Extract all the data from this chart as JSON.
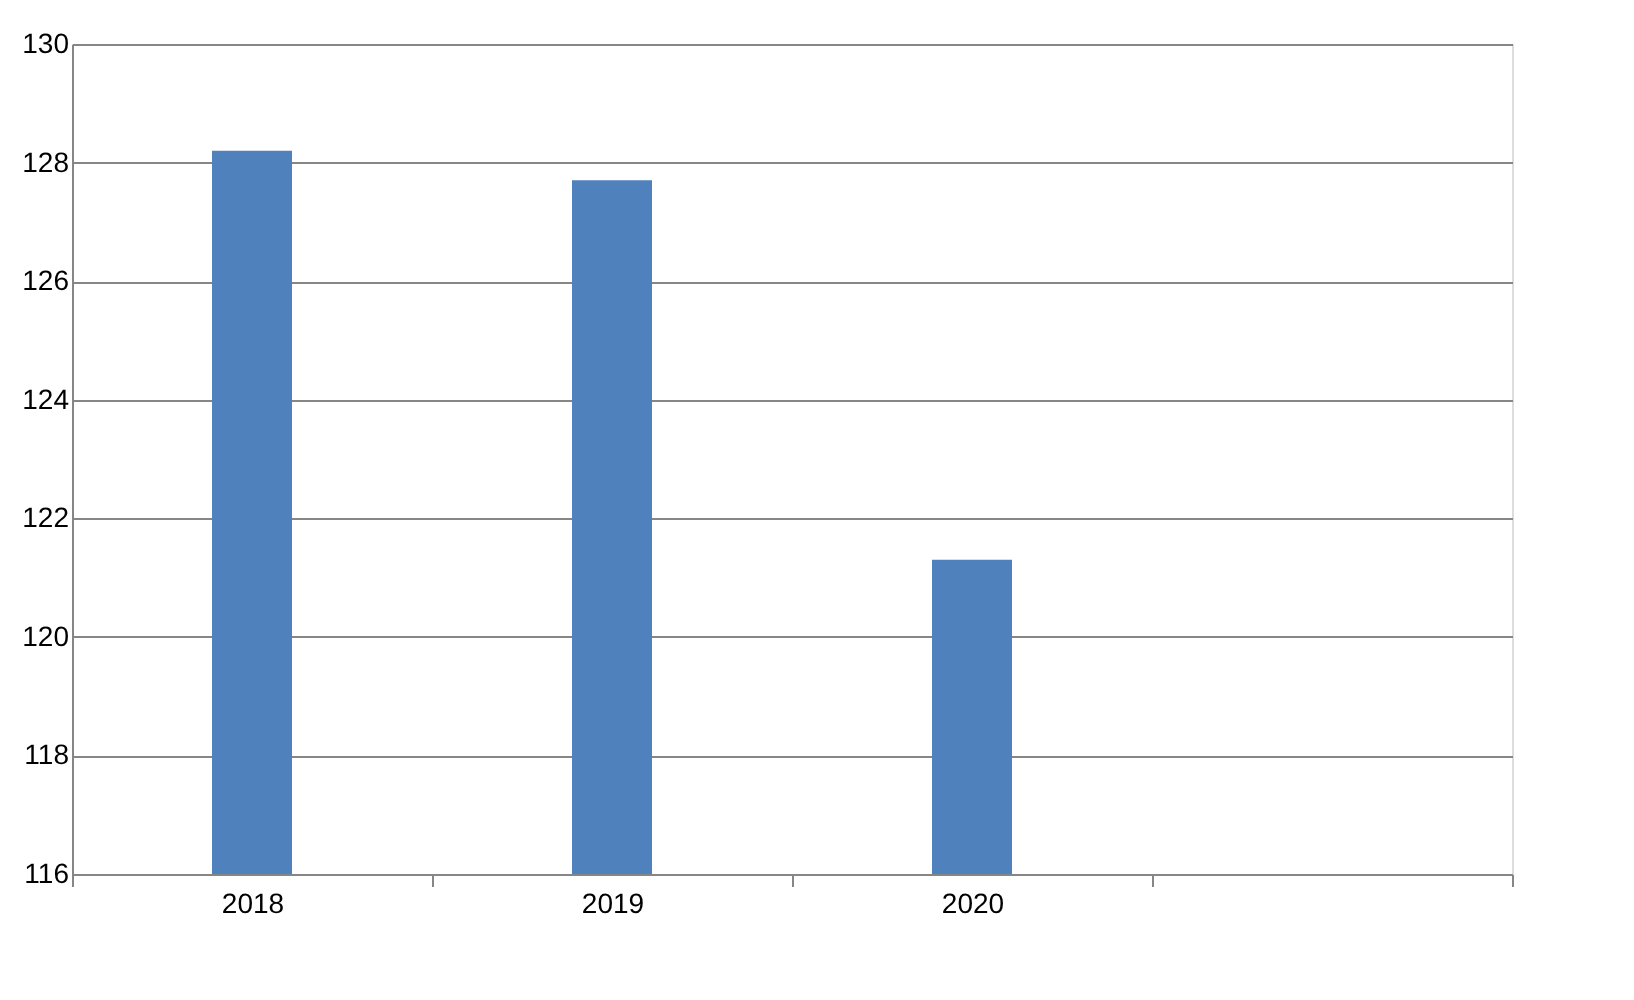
{
  "chart_data": {
    "type": "bar",
    "categories": [
      "2018",
      "2019",
      "2020",
      null
    ],
    "series": [
      {
        "color": "#4f81bd",
        "values": [
          128.2,
          127.7,
          121.3,
          null
        ]
      }
    ],
    "ylim": [
      116,
      130
    ],
    "yticks": [
      116,
      118,
      120,
      122,
      124,
      126,
      128,
      130
    ],
    "grid": "y"
  }
}
